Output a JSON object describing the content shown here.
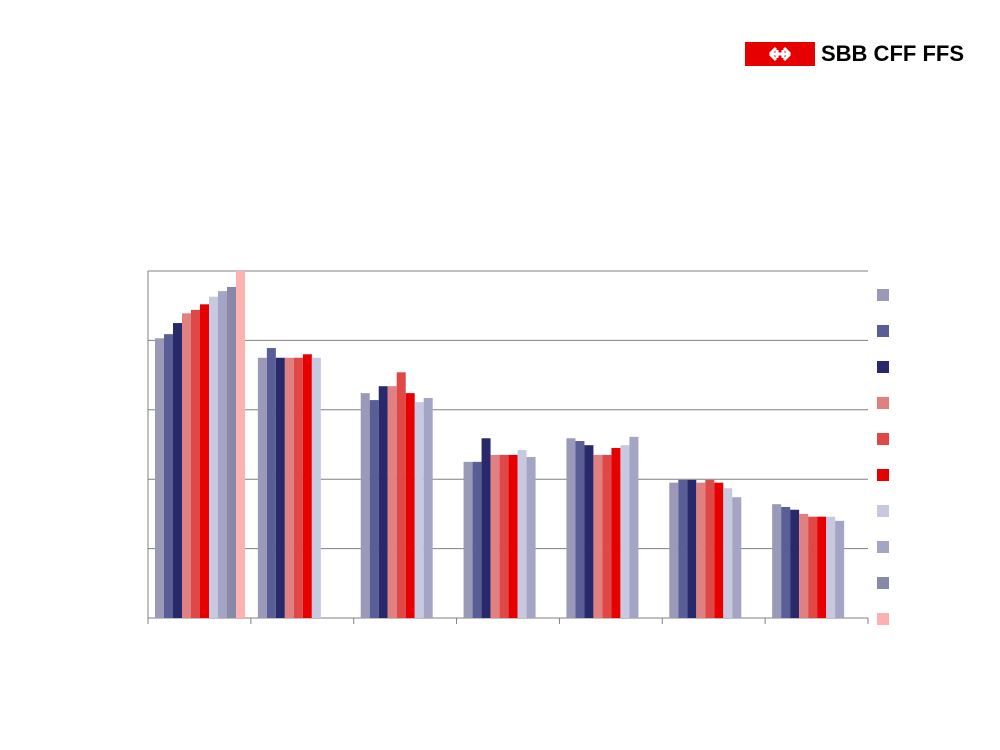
{
  "logo": {
    "text": "SBB CFF FFS"
  },
  "chart_data": {
    "type": "bar",
    "categories": [
      null,
      null,
      null,
      null,
      null,
      null,
      null
    ],
    "series": [
      {
        "color": "#9a9ab8",
        "values": [
          4.03,
          3.75,
          3.24,
          2.25,
          2.59,
          1.95,
          1.64
        ]
      },
      {
        "color": "#5a5e96",
        "values": [
          4.09,
          3.89,
          3.14,
          2.25,
          2.55,
          1.99,
          1.6
        ]
      },
      {
        "color": "#27296b",
        "values": [
          4.25,
          3.75,
          3.34,
          2.59,
          2.49,
          1.99,
          1.56
        ]
      },
      {
        "color": "#e08080",
        "values": [
          4.39,
          3.75,
          3.34,
          2.35,
          2.35,
          1.95,
          1.5
        ]
      },
      {
        "color": "#e04848",
        "values": [
          4.44,
          3.75,
          3.54,
          2.35,
          2.35,
          1.99,
          1.46
        ]
      },
      {
        "color": "#e60000",
        "values": [
          4.52,
          3.8,
          3.24,
          2.35,
          2.45,
          1.95,
          1.46
        ]
      },
      {
        "color": "#c8c8e0",
        "values": [
          4.63,
          3.75,
          3.11,
          2.42,
          2.49,
          1.87,
          1.46
        ]
      },
      {
        "color": "#a4a4c4",
        "values": [
          4.71,
          null,
          3.17,
          2.32,
          2.61,
          1.74,
          1.4
        ]
      },
      {
        "color": "#8888a8",
        "values": [
          4.77,
          null,
          null,
          null,
          null,
          null,
          null
        ]
      },
      {
        "color": "#ffb0b0",
        "values": [
          5.0,
          null,
          null,
          null,
          null,
          null,
          null
        ]
      }
    ],
    "ylim": [
      0,
      5
    ],
    "yticks": [
      0,
      1,
      2,
      3,
      4,
      5
    ],
    "grid": true
  }
}
